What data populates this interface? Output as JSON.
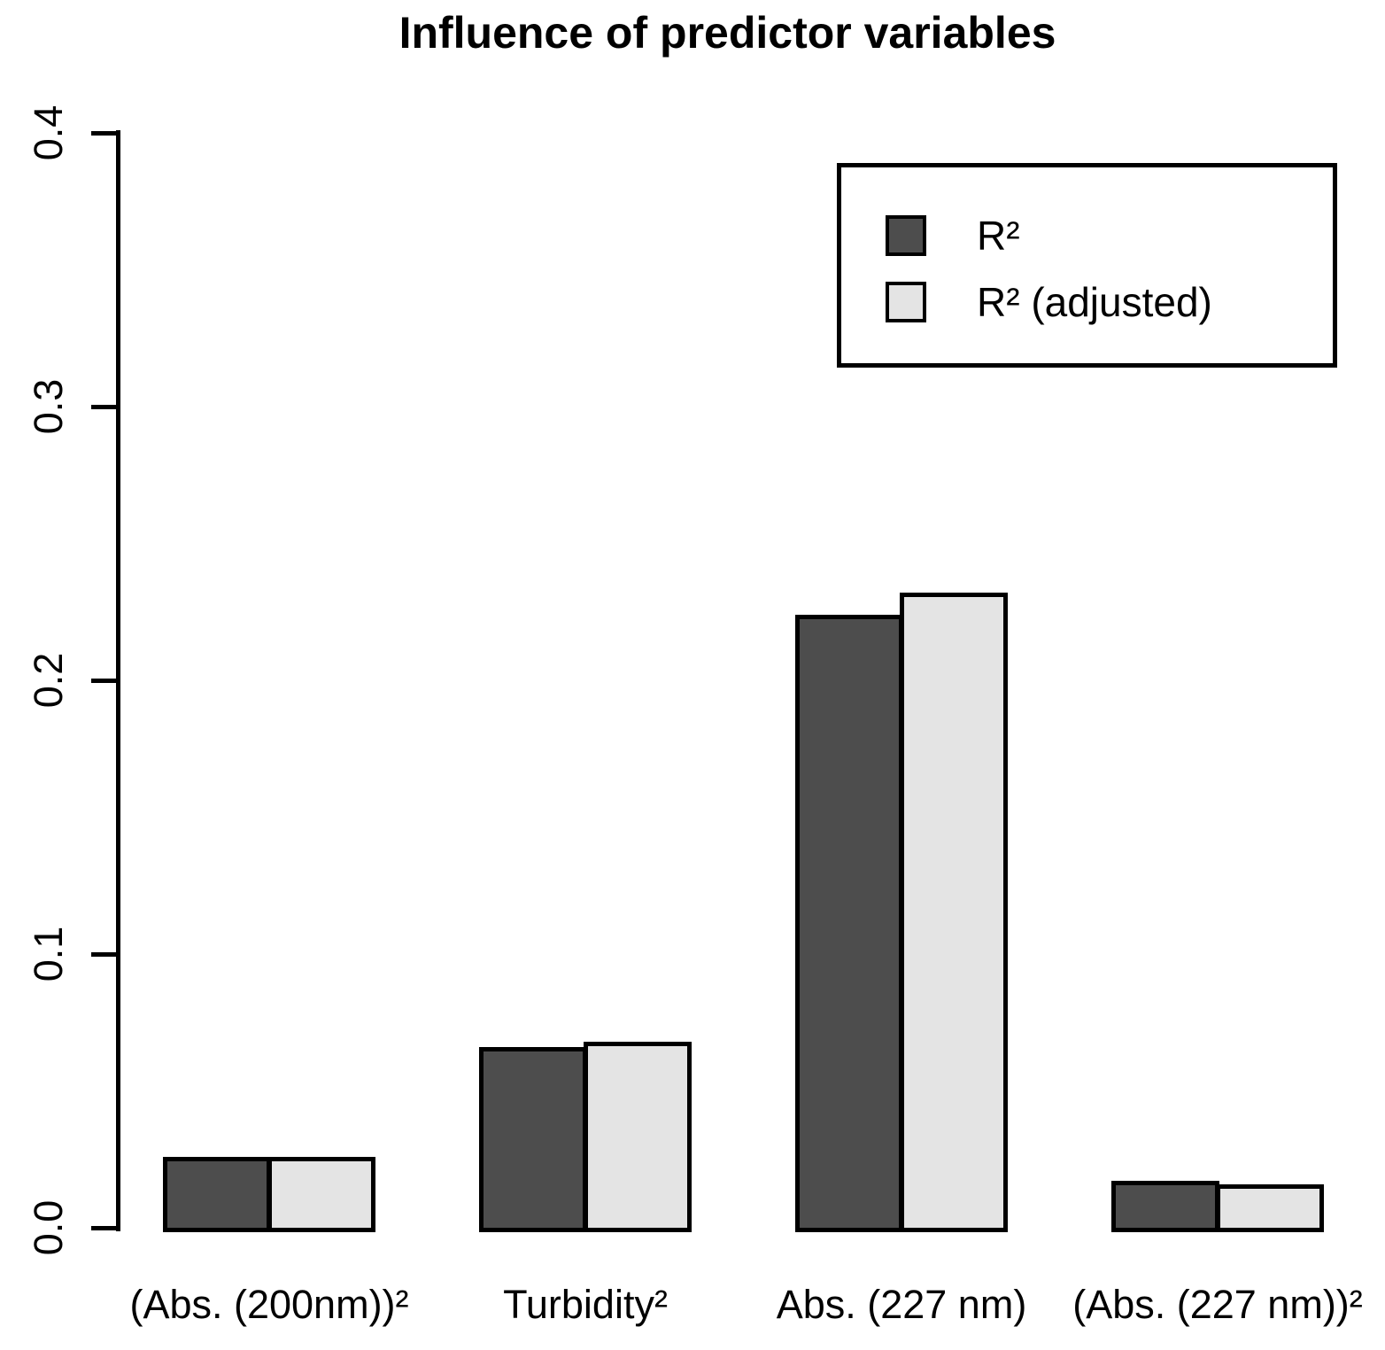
{
  "title": "Influence of predictor variables",
  "legend": {
    "items": [
      {
        "label": "R²",
        "color": "#4D4D4D"
      },
      {
        "label": "R² (adjusted)",
        "color": "#E4E4E4"
      }
    ]
  },
  "y_axis": {
    "tick_labels": [
      "0.0",
      "0.1",
      "0.2",
      "0.3",
      "0.4"
    ]
  },
  "chart_data": {
    "type": "bar",
    "title": "Influence of predictor variables",
    "categories": [
      "(Abs. (200nm))²",
      "Turbidity²",
      "Abs. (227 nm)",
      "(Abs. (227 nm))²"
    ],
    "series": [
      {
        "name": "R²",
        "color": "#4D4D4D",
        "values": [
          0.026,
          0.066,
          0.224,
          0.017
        ]
      },
      {
        "name": "R² (adjusted)",
        "color": "#E4E4E4",
        "values": [
          0.026,
          0.068,
          0.232,
          0.016
        ]
      }
    ],
    "xlabel": "",
    "ylabel": "",
    "ylim": [
      0.0,
      0.4
    ],
    "yticks": [
      0.0,
      0.1,
      0.2,
      0.3,
      0.4
    ],
    "grid": false,
    "legend_position": "top-right",
    "bar_border_color": "#000000",
    "background_color": "#FFFFFF"
  }
}
